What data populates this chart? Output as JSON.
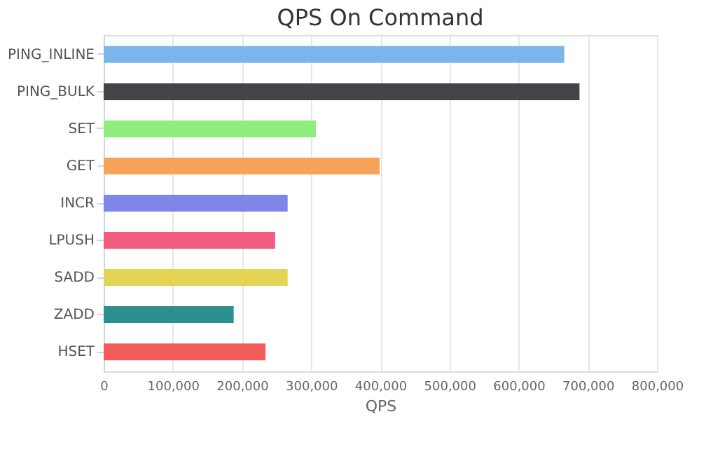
{
  "chart_data": {
    "type": "bar",
    "orientation": "horizontal",
    "title": "QPS On Command",
    "xlabel": "QPS",
    "categories": [
      "PING_INLINE",
      "PING_BULK",
      "SET",
      "GET",
      "INCR",
      "LPUSH",
      "SADD",
      "ZADD",
      "HSET"
    ],
    "values": [
      666000,
      688000,
      307000,
      399000,
      266000,
      248000,
      266000,
      188000,
      234000
    ],
    "colors": [
      "#7cb5ec",
      "#434348",
      "#90ed7d",
      "#f7a35c",
      "#8085e9",
      "#f15c80",
      "#e4d354",
      "#2b908f",
      "#f45b5b"
    ],
    "xlim": [
      0,
      800000
    ],
    "xticks": [
      0,
      {
        "value": 100000,
        "label": "100,000"
      },
      {
        "value": 200000,
        "label": "200,000"
      },
      {
        "value": 300000,
        "label": "300,000"
      },
      {
        "value": 400000,
        "label": "400,000"
      },
      {
        "value": 500000,
        "label": "500,000"
      },
      {
        "value": 600000,
        "label": "600,000"
      },
      {
        "value": 700000,
        "label": "700,000"
      },
      {
        "value": 800000,
        "label": "800,000"
      }
    ],
    "grid": "x"
  }
}
